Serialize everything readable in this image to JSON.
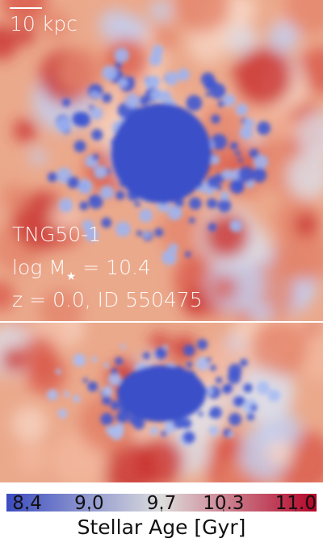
{
  "scale_bar": {
    "label": "10 kpc"
  },
  "annotation": {
    "simulation": "TNG50-1",
    "mass": {
      "text": "log M",
      "subscript": "★",
      "value_text": " = 10.4"
    },
    "redshift_id": "z = 0.0, ID 550475"
  },
  "colorbar": {
    "label": "Stellar Age [Gyr]",
    "lim": [
      8.2,
      11.2
    ],
    "ticks": [
      8.4,
      {
        "value": 9,
        "label": "9.0"
      },
      9.7,
      10.3,
      {
        "value": 11,
        "label": "11.0"
      }
    ],
    "colors": [
      "#3b4cc0",
      "#dddddd",
      "#b40426"
    ]
  }
}
